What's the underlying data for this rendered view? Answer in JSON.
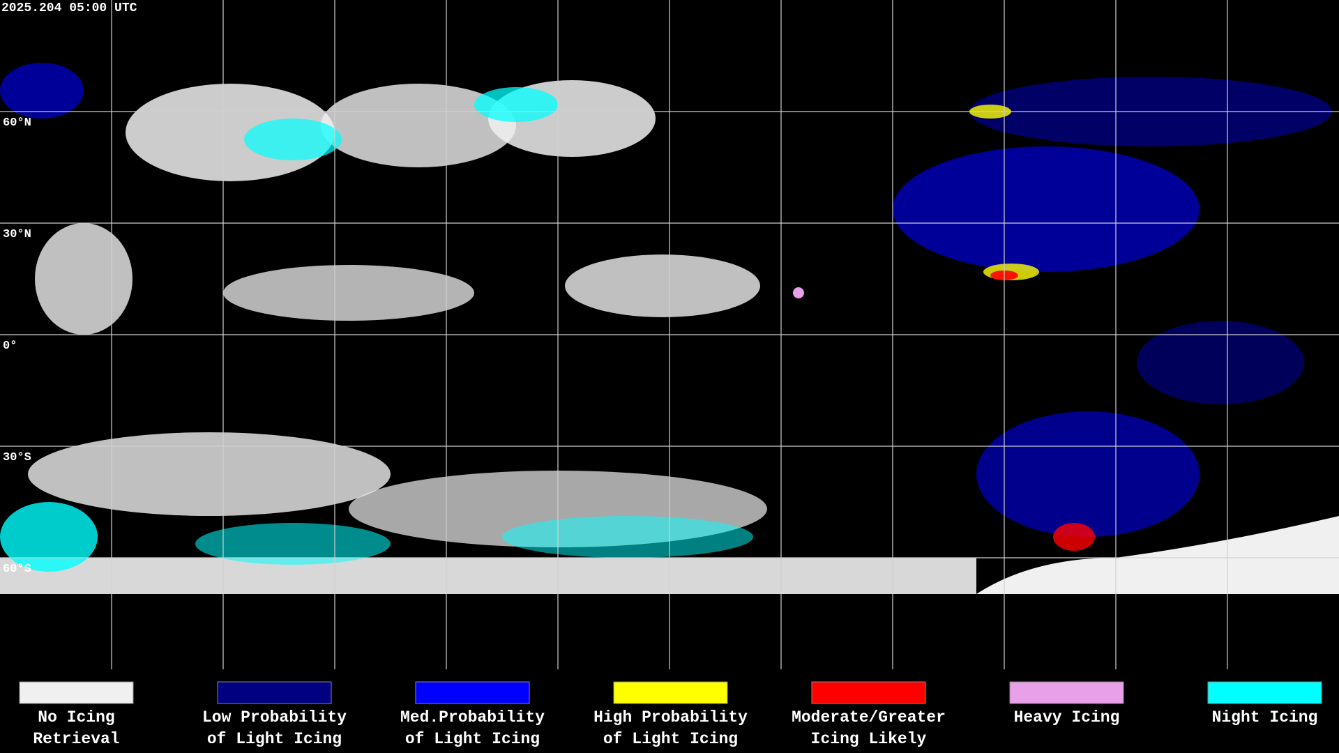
{
  "header": {
    "timestamp": "2025.204 05:00 UTC"
  },
  "map": {
    "latitude_labels": [
      "60°N",
      "30°N",
      "0°",
      "30°S",
      "60°S"
    ]
  },
  "legend": [
    {
      "lines": [
        "No Icing",
        "Retrieval"
      ],
      "color": "#f0f0f0"
    },
    {
      "lines": [
        "Low Probability",
        "of Light Icing"
      ],
      "color": "#000080"
    },
    {
      "lines": [
        "Med.Probability",
        "of Light Icing"
      ],
      "color": "#0000ff"
    },
    {
      "lines": [
        "High Probability",
        "of Light Icing"
      ],
      "color": "#ffff00"
    },
    {
      "lines": [
        "Moderate/Greater",
        "Icing Likely"
      ],
      "color": "#ff0000"
    },
    {
      "lines": [
        "Heavy Icing"
      ],
      "color": "#e8a0e8"
    },
    {
      "lines": [
        "Night Icing"
      ],
      "color": "#00ffff"
    }
  ]
}
